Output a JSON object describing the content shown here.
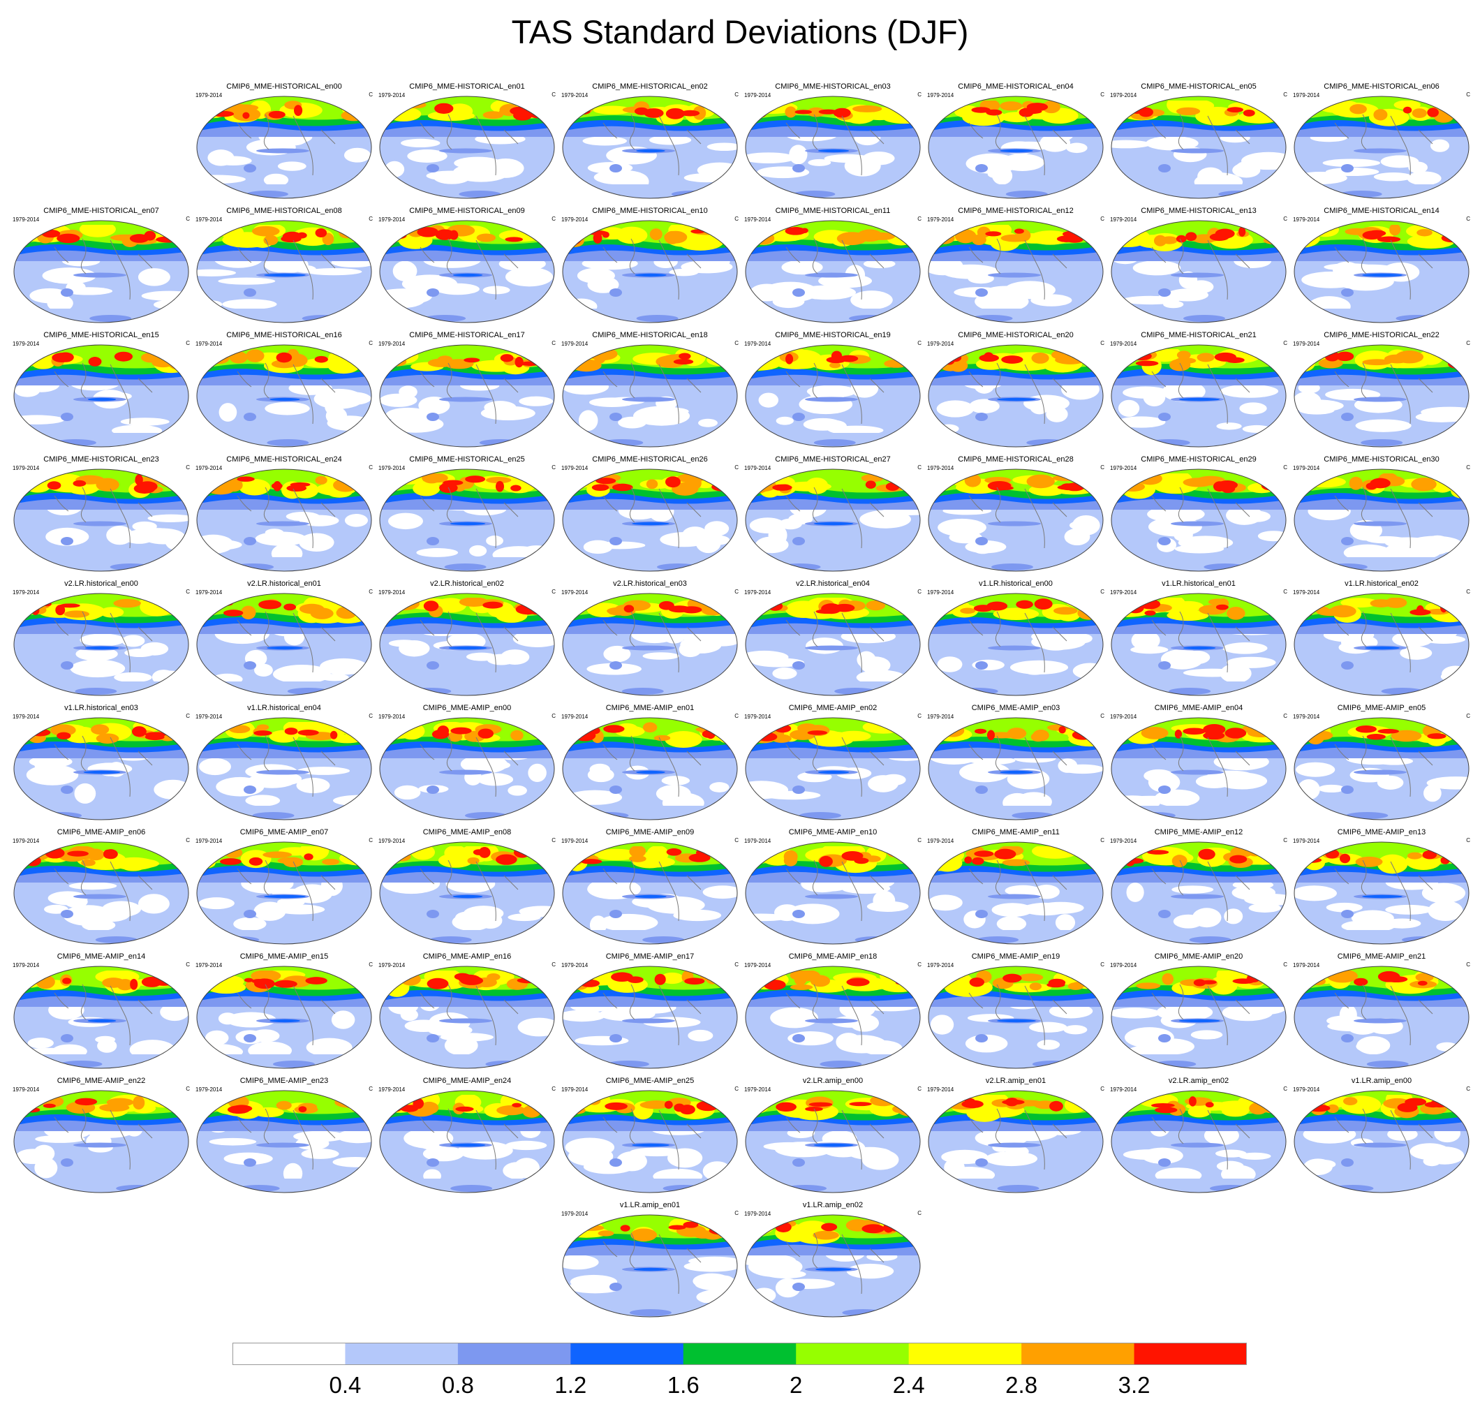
{
  "title": "TAS Standard Deviations (DJF)",
  "panel_period": "1979-2014",
  "panel_unit": "C",
  "panels": [
    "CMIP6_MME-HISTORICAL_en00",
    "CMIP6_MME-HISTORICAL_en01",
    "CMIP6_MME-HISTORICAL_en02",
    "CMIP6_MME-HISTORICAL_en03",
    "CMIP6_MME-HISTORICAL_en04",
    "CMIP6_MME-HISTORICAL_en05",
    "CMIP6_MME-HISTORICAL_en06",
    "CMIP6_MME-HISTORICAL_en07",
    "CMIP6_MME-HISTORICAL_en08",
    "CMIP6_MME-HISTORICAL_en09",
    "CMIP6_MME-HISTORICAL_en10",
    "CMIP6_MME-HISTORICAL_en11",
    "CMIP6_MME-HISTORICAL_en12",
    "CMIP6_MME-HISTORICAL_en13",
    "CMIP6_MME-HISTORICAL_en14",
    "CMIP6_MME-HISTORICAL_en15",
    "CMIP6_MME-HISTORICAL_en16",
    "CMIP6_MME-HISTORICAL_en17",
    "CMIP6_MME-HISTORICAL_en18",
    "CMIP6_MME-HISTORICAL_en19",
    "CMIP6_MME-HISTORICAL_en20",
    "CMIP6_MME-HISTORICAL_en21",
    "CMIP6_MME-HISTORICAL_en22",
    "CMIP6_MME-HISTORICAL_en23",
    "CMIP6_MME-HISTORICAL_en24",
    "CMIP6_MME-HISTORICAL_en25",
    "CMIP6_MME-HISTORICAL_en26",
    "CMIP6_MME-HISTORICAL_en27",
    "CMIP6_MME-HISTORICAL_en28",
    "CMIP6_MME-HISTORICAL_en29",
    "CMIP6_MME-HISTORICAL_en30",
    "v2.LR.historical_en00",
    "v2.LR.historical_en01",
    "v2.LR.historical_en02",
    "v2.LR.historical_en03",
    "v2.LR.historical_en04",
    "v1.LR.historical_en00",
    "v1.LR.historical_en01",
    "v1.LR.historical_en02",
    "v1.LR.historical_en03",
    "v1.LR.historical_en04",
    "CMIP6_MME-AMIP_en00",
    "CMIP6_MME-AMIP_en01",
    "CMIP6_MME-AMIP_en02",
    "CMIP6_MME-AMIP_en03",
    "CMIP6_MME-AMIP_en04",
    "CMIP6_MME-AMIP_en05",
    "CMIP6_MME-AMIP_en06",
    "CMIP6_MME-AMIP_en07",
    "CMIP6_MME-AMIP_en08",
    "CMIP6_MME-AMIP_en09",
    "CMIP6_MME-AMIP_en10",
    "CMIP6_MME-AMIP_en11",
    "CMIP6_MME-AMIP_en12",
    "CMIP6_MME-AMIP_en13",
    "CMIP6_MME-AMIP_en14",
    "CMIP6_MME-AMIP_en15",
    "CMIP6_MME-AMIP_en16",
    "CMIP6_MME-AMIP_en17",
    "CMIP6_MME-AMIP_en18",
    "CMIP6_MME-AMIP_en19",
    "CMIP6_MME-AMIP_en20",
    "CMIP6_MME-AMIP_en21",
    "CMIP6_MME-AMIP_en22",
    "CMIP6_MME-AMIP_en23",
    "CMIP6_MME-AMIP_en24",
    "CMIP6_MME-AMIP_en25",
    "v2.LR.amip_en00",
    "v2.LR.amip_en01",
    "v2.LR.amip_en02",
    "v1.LR.amip_en00",
    "v1.LR.amip_en01",
    "v1.LR.amip_en02"
  ],
  "colorbar": {
    "levels": [
      "0.4",
      "0.8",
      "1.2",
      "1.6",
      "2",
      "2.4",
      "2.8",
      "3.2"
    ],
    "colors": [
      "#ffffff",
      "#b4c8fa",
      "#7d98f0",
      "#0f64ff",
      "#00c030",
      "#96ff00",
      "#ffff00",
      "#ffa000",
      "#ff1400"
    ]
  },
  "colors": {
    "map_outline": "#404040",
    "land_outline": "#7a7a7a"
  }
}
